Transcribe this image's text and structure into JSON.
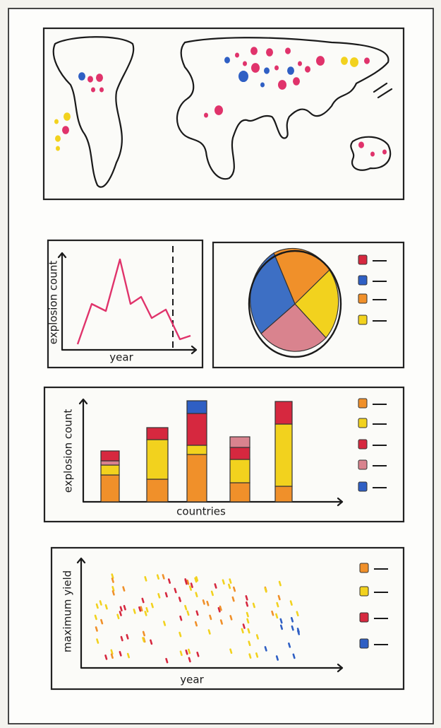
{
  "panels": {
    "line": {
      "y_label": "explosion count",
      "x_label": "year"
    },
    "bar": {
      "y_label": "explosion count",
      "x_label": "countries"
    },
    "scatter": {
      "y_label": "maximum yield",
      "x_label": "year"
    }
  }
}
